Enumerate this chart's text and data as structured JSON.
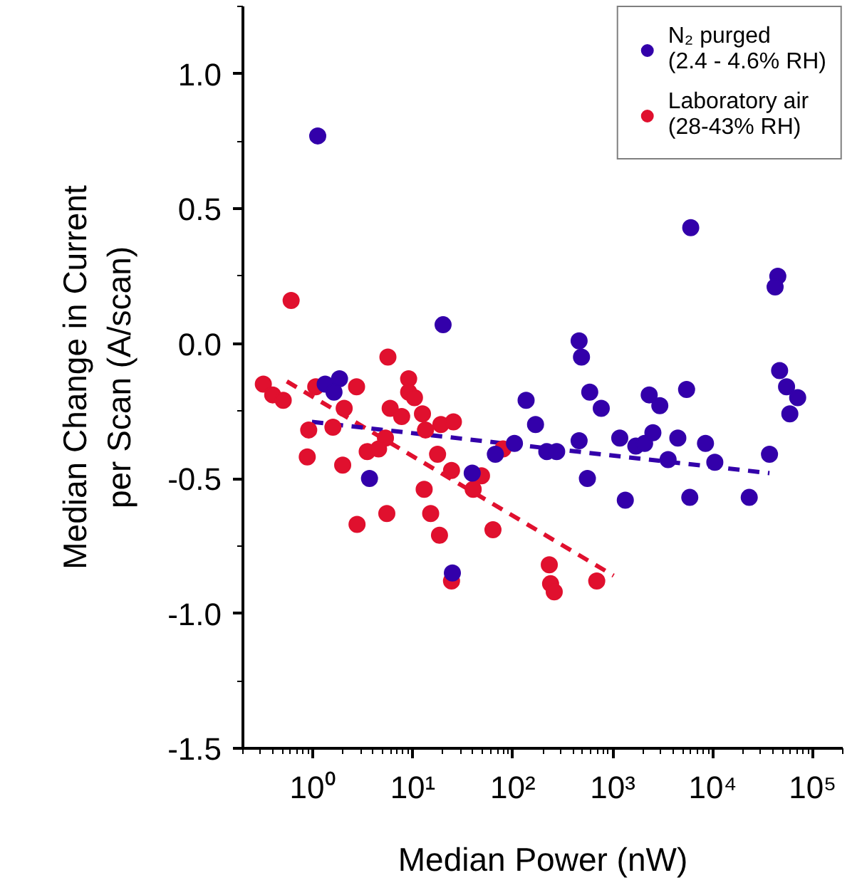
{
  "chart_data": {
    "type": "scatter",
    "xlabel": "Median Power (nW)",
    "ylabel": "Median Change in Current\nper Scan (A/scan)",
    "log": "x",
    "xlim": [
      0.2,
      200000
    ],
    "ylim": [
      -1.5,
      1.25
    ],
    "xticks": [
      {
        "value": 1,
        "label": "10⁰"
      },
      {
        "value": 10,
        "label": "10¹"
      },
      {
        "value": 100,
        "label": "10²"
      },
      {
        "value": 1000,
        "label": "10³"
      },
      {
        "value": 10000,
        "label": "10⁴"
      },
      {
        "value": 100000,
        "label": "10⁵"
      }
    ],
    "yticks": [
      {
        "value": 1,
        "label": "1.0"
      },
      {
        "value": 0.5,
        "label": "0.5"
      },
      {
        "value": 0,
        "label": "0.0"
      },
      {
        "value": -0.5,
        "label": "-0.5"
      },
      {
        "value": -1,
        "label": "-1.0"
      },
      {
        "value": -1.5,
        "label": "-1.5"
      }
    ],
    "grid": false,
    "legend": "top right",
    "marker": "circle",
    "series": [
      {
        "name": "N₂ purged\n(2.4 - 4.6% RH)",
        "color": "#3300aa",
        "x": [
          1.12,
          20.1,
          1.33,
          1.85,
          1.63,
          3.69,
          24.9,
          136,
          169,
          219,
          104,
          67,
          39.3,
          461,
          487,
          275,
          461,
          558,
          589,
          768,
          1176,
          1336,
          1702,
          2085,
          2522,
          2317,
          2958,
          5480,
          4480,
          3580,
          5900,
          8470,
          10500,
          23200,
          37000,
          46700,
          54800,
          70800,
          59100,
          6030,
          44800,
          42100
        ],
        "values": [
          0.77,
          0.07,
          -0.15,
          -0.13,
          -0.18,
          -0.5,
          -0.85,
          -0.21,
          -0.3,
          -0.4,
          -0.37,
          -0.41,
          -0.48,
          0.01,
          -0.05,
          -0.4,
          -0.36,
          -0.5,
          -0.18,
          -0.24,
          -0.35,
          -0.58,
          -0.38,
          -0.37,
          -0.33,
          -0.19,
          -0.23,
          -0.17,
          -0.35,
          -0.43,
          -0.57,
          -0.37,
          -0.44,
          -0.57,
          -0.41,
          -0.1,
          -0.16,
          -0.2,
          -0.26,
          0.43,
          0.25,
          0.21
        ]
      },
      {
        "name": "Laboratory air\n(28-43% RH)",
        "color": "#e0102e",
        "x": [
          0.607,
          5.64,
          0.32,
          0.397,
          0.506,
          1.07,
          2.74,
          9.09,
          9.09,
          10.4,
          2.06,
          5.94,
          7.74,
          12.5,
          19.1,
          25.5,
          0.91,
          1.59,
          5.33,
          13.4,
          0.88,
          1.99,
          3.5,
          4.55,
          2.77,
          5.5,
          13.0,
          15.1,
          18.5,
          17.7,
          24.4,
          24.4,
          40.2,
          48.7,
          63.4,
          80,
          232,
          239,
          260,
          692
        ],
        "values": [
          0.16,
          -0.05,
          -0.15,
          -0.19,
          -0.21,
          -0.16,
          -0.16,
          -0.13,
          -0.18,
          -0.2,
          -0.24,
          -0.24,
          -0.27,
          -0.26,
          -0.3,
          -0.29,
          -0.32,
          -0.31,
          -0.35,
          -0.32,
          -0.42,
          -0.45,
          -0.4,
          -0.39,
          -0.67,
          -0.63,
          -0.54,
          -0.63,
          -0.71,
          -0.41,
          -0.47,
          -0.88,
          -0.54,
          -0.49,
          -0.69,
          -0.39,
          -0.82,
          -0.89,
          -0.92,
          -0.88
        ]
      },
      {
        "type": "line",
        "marker": "none",
        "line_style": "dashed",
        "color": "#3300aa",
        "x": [
          0.98,
          37000
        ],
        "values": [
          -0.29,
          -0.48
        ]
      },
      {
        "type": "line",
        "marker": "none",
        "line_style": "dashed",
        "color": "#e0102e",
        "x": [
          0.55,
          1020
        ],
        "values": [
          -0.14,
          -0.86
        ]
      }
    ]
  }
}
